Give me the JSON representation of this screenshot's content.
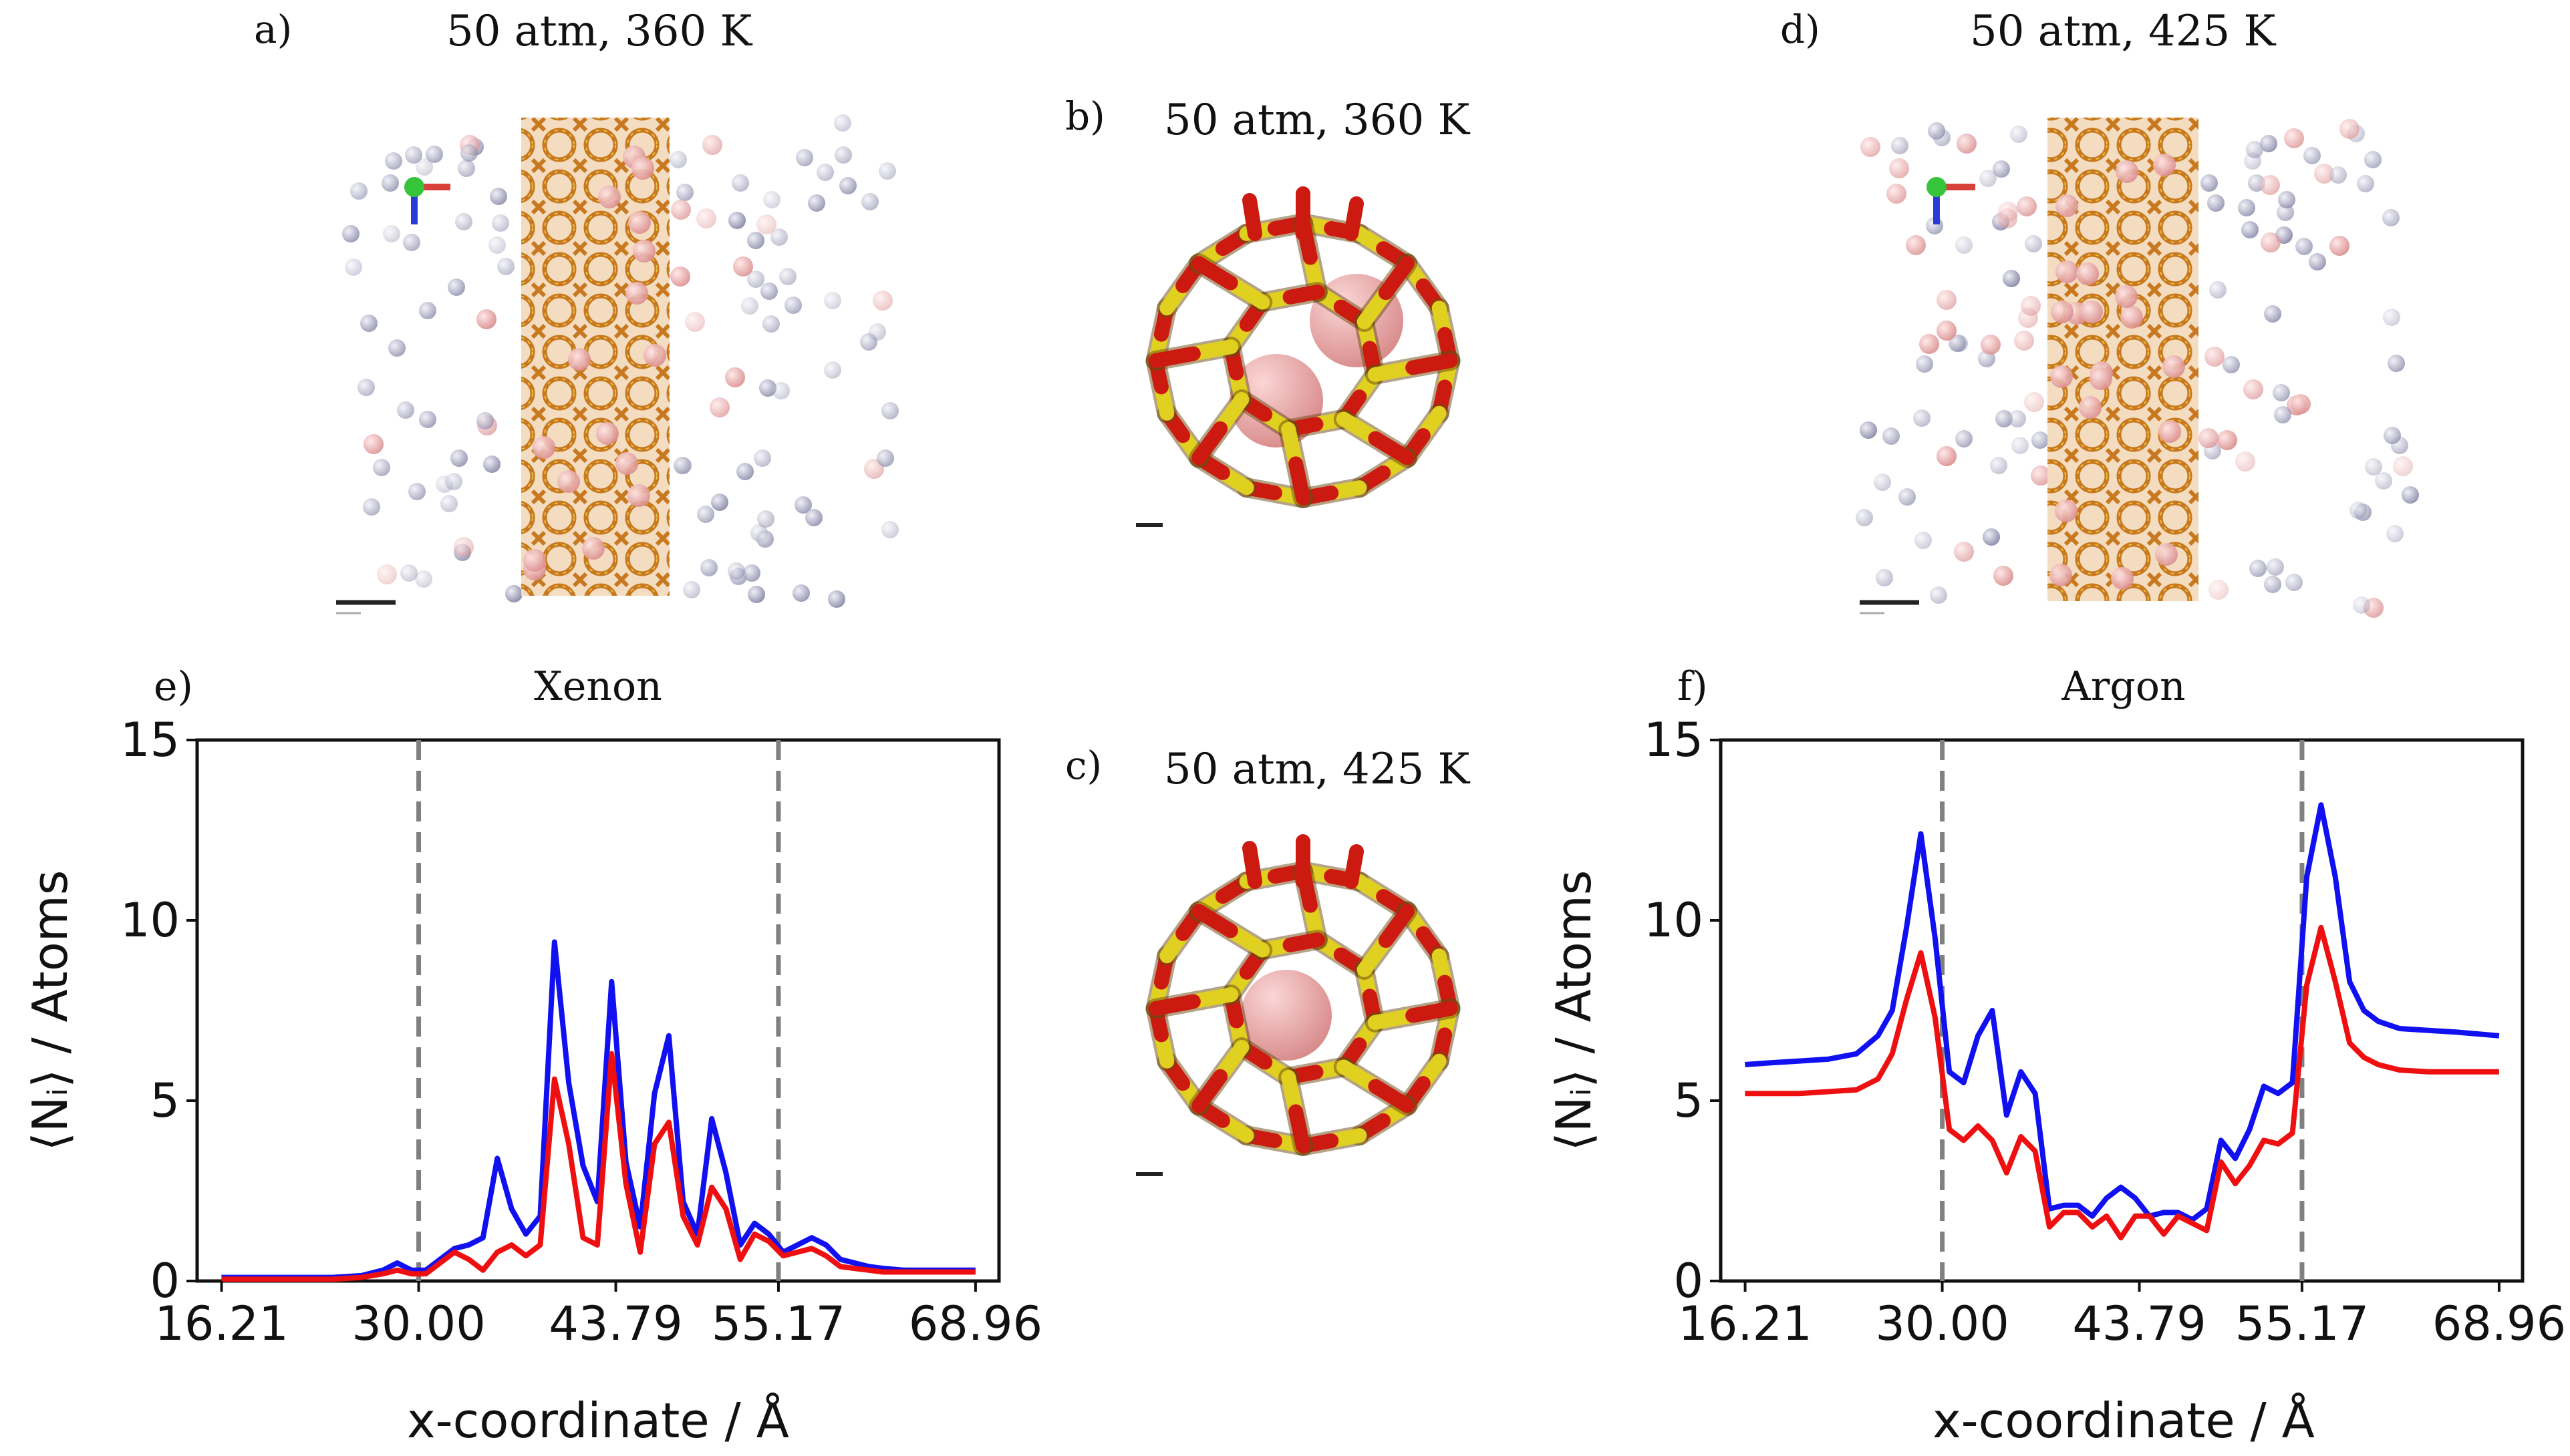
{
  "panels": {
    "a": {
      "label": "a)",
      "title": "50 atm, 360 K"
    },
    "b": {
      "label": "b)",
      "title": "50 atm, 360 K"
    },
    "c": {
      "label": "c)",
      "title": "50 atm, 425 K"
    },
    "d": {
      "label": "d)",
      "title": "50 atm, 425 K"
    }
  },
  "colors": {
    "blue": "#1010f0",
    "red": "#ee1010",
    "framework": "#c8781e",
    "cage_red": "#cc1a10",
    "cage_yellow": "#e0d020",
    "xenon": "#e8a0a0",
    "argon": "#8d8daf",
    "dash": "#808080"
  },
  "chart_data": [
    {
      "type": "line",
      "panel_label": "e)",
      "title": "Xenon",
      "xlabel": "x-coordinate / Å",
      "ylabel": "⟨Nᵢ⟩ / Atoms",
      "xlim": [
        14.5,
        70.6
      ],
      "ylim": [
        0,
        15
      ],
      "xticks": [
        16.21,
        30.0,
        43.79,
        55.17,
        68.96
      ],
      "xtick_labels": [
        "16.21",
        "30.00",
        "43.79",
        "55.17",
        "68.96"
      ],
      "yticks": [
        0,
        5,
        10,
        15
      ],
      "ytick_labels": [
        "0",
        "5",
        "10",
        "15"
      ],
      "vlines": [
        30.0,
        55.17
      ],
      "series": [
        {
          "name": "blue",
          "color": "#1010f0",
          "x": [
            16.2,
            18,
            20,
            22,
            24,
            26,
            27.5,
            28.5,
            29.5,
            30.5,
            31.5,
            32.5,
            33.5,
            34.5,
            35.5,
            36.5,
            37.5,
            38.5,
            39.5,
            40.5,
            41.5,
            42.5,
            43.5,
            44.5,
            45.5,
            46.5,
            47.5,
            48.5,
            49.5,
            50.5,
            51.5,
            52.5,
            53.5,
            54.5,
            55.5,
            56.5,
            57.5,
            58.5,
            59.5,
            60.5,
            61.5,
            62.5,
            64,
            66,
            68.96
          ],
          "y": [
            0.1,
            0.1,
            0.1,
            0.1,
            0.1,
            0.15,
            0.3,
            0.5,
            0.3,
            0.3,
            0.6,
            0.9,
            1.0,
            1.2,
            3.4,
            2.0,
            1.3,
            1.8,
            9.4,
            5.5,
            3.2,
            2.2,
            8.3,
            3.3,
            1.5,
            5.2,
            6.8,
            2.2,
            1.3,
            4.5,
            3.0,
            1.0,
            1.6,
            1.3,
            0.8,
            1.0,
            1.2,
            1.0,
            0.6,
            0.5,
            0.4,
            0.35,
            0.3,
            0.3,
            0.3
          ]
        },
        {
          "name": "red",
          "color": "#ee1010",
          "x": [
            16.2,
            18,
            20,
            22,
            24,
            26,
            27.5,
            28.5,
            29.5,
            30.5,
            31.5,
            32.5,
            33.5,
            34.5,
            35.5,
            36.5,
            37.5,
            38.5,
            39.5,
            40.5,
            41.5,
            42.5,
            43.5,
            44.5,
            45.5,
            46.5,
            47.5,
            48.5,
            49.5,
            50.5,
            51.5,
            52.5,
            53.5,
            54.5,
            55.5,
            56.5,
            57.5,
            58.5,
            59.5,
            60.5,
            61.5,
            62.5,
            64,
            66,
            68.96
          ],
          "y": [
            0.05,
            0.05,
            0.05,
            0.05,
            0.05,
            0.1,
            0.2,
            0.3,
            0.2,
            0.2,
            0.5,
            0.8,
            0.6,
            0.3,
            0.8,
            1.0,
            0.7,
            1.0,
            5.6,
            3.8,
            1.2,
            1.0,
            6.3,
            2.7,
            0.8,
            3.8,
            4.4,
            1.8,
            1.0,
            2.6,
            2.0,
            0.6,
            1.3,
            1.1,
            0.7,
            0.8,
            0.9,
            0.7,
            0.4,
            0.35,
            0.3,
            0.25,
            0.25,
            0.25,
            0.25
          ]
        }
      ]
    },
    {
      "type": "line",
      "panel_label": "f)",
      "title": "Argon",
      "xlabel": "x-coordinate / Å",
      "ylabel": "⟨Nᵢ⟩ / Atoms",
      "xlim": [
        14.5,
        70.6
      ],
      "ylim": [
        0,
        15
      ],
      "xticks": [
        16.21,
        30.0,
        43.79,
        55.17,
        68.96
      ],
      "xtick_labels": [
        "16.21",
        "30.00",
        "43.79",
        "55.17",
        "68.96"
      ],
      "yticks": [
        0,
        5,
        10,
        15
      ],
      "ytick_labels": [
        "0",
        "5",
        "10",
        "15"
      ],
      "vlines": [
        30.0,
        55.17
      ],
      "series": [
        {
          "name": "blue",
          "color": "#1010f0",
          "x": [
            16.2,
            18,
            20,
            22,
            24,
            25.5,
            26.5,
            27.5,
            28.5,
            29.5,
            30.5,
            31.5,
            32.5,
            33.5,
            34.5,
            35.5,
            36.5,
            37.5,
            38.5,
            39.5,
            40.5,
            41.5,
            42.5,
            43.5,
            44.5,
            45.5,
            46.5,
            47.5,
            48.5,
            49.5,
            50.5,
            51.5,
            52.5,
            53.5,
            54.5,
            55.5,
            56.5,
            57.5,
            58.5,
            59.5,
            60.5,
            62,
            64,
            66,
            68.96
          ],
          "y": [
            6.0,
            6.05,
            6.1,
            6.15,
            6.3,
            6.8,
            7.5,
            9.8,
            12.4,
            9.5,
            5.8,
            5.5,
            6.8,
            7.5,
            4.6,
            5.8,
            5.2,
            2.0,
            2.1,
            2.1,
            1.8,
            2.3,
            2.6,
            2.3,
            1.8,
            1.9,
            1.9,
            1.7,
            2.0,
            3.9,
            3.4,
            4.2,
            5.4,
            5.2,
            5.5,
            11.2,
            13.2,
            11.2,
            8.3,
            7.5,
            7.2,
            7.0,
            6.95,
            6.9,
            6.8
          ]
        },
        {
          "name": "red",
          "color": "#ee1010",
          "x": [
            16.2,
            18,
            20,
            22,
            24,
            25.5,
            26.5,
            27.5,
            28.5,
            29.5,
            30.5,
            31.5,
            32.5,
            33.5,
            34.5,
            35.5,
            36.5,
            37.5,
            38.5,
            39.5,
            40.5,
            41.5,
            42.5,
            43.5,
            44.5,
            45.5,
            46.5,
            47.5,
            48.5,
            49.5,
            50.5,
            51.5,
            52.5,
            53.5,
            54.5,
            55.5,
            56.5,
            57.5,
            58.5,
            59.5,
            60.5,
            62,
            64,
            66,
            68.96
          ],
          "y": [
            5.2,
            5.2,
            5.2,
            5.25,
            5.3,
            5.6,
            6.3,
            7.8,
            9.1,
            7.3,
            4.2,
            3.9,
            4.3,
            3.9,
            3.0,
            4.0,
            3.6,
            1.5,
            1.9,
            1.9,
            1.5,
            1.8,
            1.2,
            1.8,
            1.8,
            1.3,
            1.8,
            1.6,
            1.4,
            3.3,
            2.7,
            3.2,
            3.9,
            3.8,
            4.1,
            8.2,
            9.8,
            8.3,
            6.6,
            6.2,
            6.0,
            5.85,
            5.8,
            5.8,
            5.8
          ]
        }
      ]
    }
  ]
}
